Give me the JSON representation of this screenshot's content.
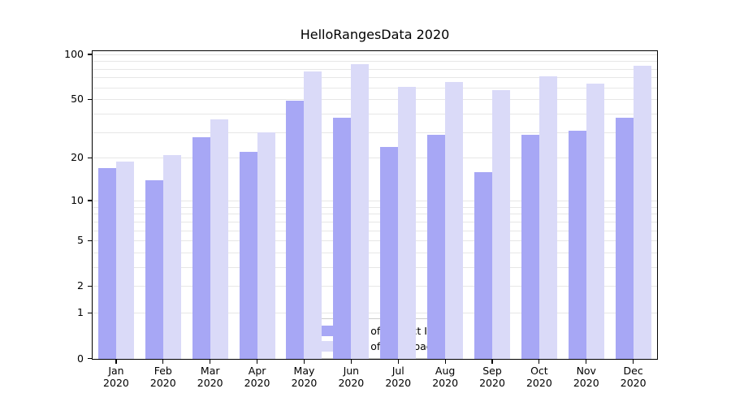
{
  "title": "HelloRangesData 2020",
  "colors": {
    "ips_bar": "#a7a7f5",
    "downloads_bar": "#dadaf8",
    "gridline": "#e7e7e7",
    "axis_line": "#000000",
    "legend_border": "#cccccc",
    "text": "#000000"
  },
  "legend": {
    "items": [
      {
        "label": "Nb of distinct IPs",
        "swatch": "ips"
      },
      {
        "label": "Nb of downloads",
        "swatch": "downloads"
      }
    ]
  },
  "chart_data": {
    "type": "bar",
    "title": "HelloRangesData 2020",
    "categories": [
      "Jan 2020",
      "Feb 2020",
      "Mar 2020",
      "Apr 2020",
      "May 2020",
      "Jun 2020",
      "Jul 2020",
      "Aug 2020",
      "Sep 2020",
      "Oct 2020",
      "Nov 2020",
      "Dec 2020"
    ],
    "series": [
      {
        "name": "Nb of distinct IPs",
        "values": [
          17,
          14,
          28,
          22,
          49,
          38,
          24,
          29,
          16,
          29,
          31,
          38
        ]
      },
      {
        "name": "Nb of downloads",
        "values": [
          19,
          21,
          37,
          30,
          77,
          86,
          61,
          66,
          58,
          72,
          64,
          84
        ]
      }
    ],
    "xlabel": "",
    "ylabel": "",
    "y_scale": "log(1+y)",
    "y_ticks": [
      0,
      1,
      2,
      5,
      10,
      20,
      50,
      100
    ],
    "y_gridlines": [
      1,
      2,
      3,
      4,
      5,
      6,
      7,
      8,
      9,
      10,
      20,
      30,
      40,
      50,
      60,
      70,
      80,
      90,
      100
    ],
    "ylim": [
      0,
      105
    ],
    "grid": true,
    "legend_position": "lower center"
  }
}
